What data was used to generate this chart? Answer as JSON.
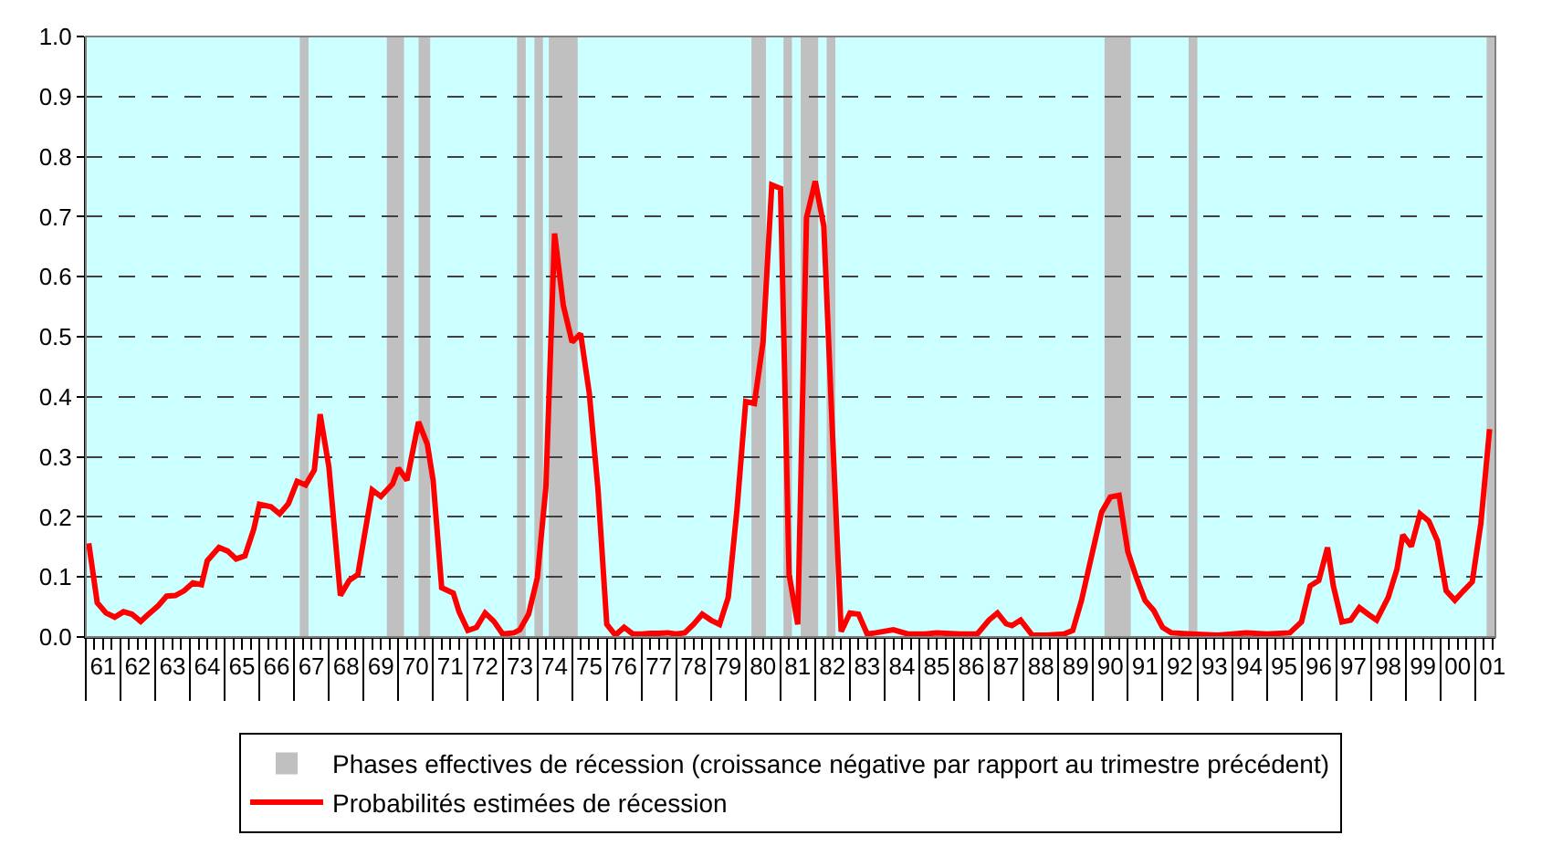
{
  "chart_data": {
    "type": "line",
    "x": [
      "1961-02",
      "1961-05",
      "1961-08",
      "1961-11",
      "1962-02",
      "1962-05",
      "1962-08",
      "1962-10",
      "1963-02",
      "1963-05",
      "1963-08",
      "1963-11",
      "1964-02",
      "1964-05",
      "1964-07",
      "1964-11",
      "1965-02",
      "1965-05",
      "1965-08",
      "1965-11",
      "1966-01",
      "1966-05",
      "1966-08",
      "1966-11",
      "1967-02",
      "1967-05",
      "1967-08",
      "1967-10",
      "1968-01",
      "1968-05",
      "1968-08",
      "1968-11",
      "1969-01",
      "1969-04",
      "1969-07",
      "1969-11",
      "1970-01",
      "1970-04",
      "1970-08",
      "1970-11",
      "1971-01",
      "1971-04",
      "1971-08",
      "1971-10",
      "1972-01",
      "1972-04",
      "1972-07",
      "1972-10",
      "1973-01",
      "1973-05",
      "1973-07",
      "1973-10",
      "1974-01",
      "1974-04",
      "1974-07",
      "1974-10",
      "1975-01",
      "1975-04",
      "1975-07",
      "1975-10",
      "1976-01",
      "1976-04",
      "1976-07",
      "1976-10",
      "1977-01",
      "1977-04",
      "1977-07",
      "1977-10",
      "1978-01",
      "1978-04",
      "1978-07",
      "1978-10",
      "1979-01",
      "1979-04",
      "1979-07",
      "1979-10",
      "1980-01",
      "1980-04",
      "1980-07",
      "1980-10",
      "1981-01",
      "1981-04",
      "1981-07",
      "1981-10",
      "1982-01",
      "1982-04",
      "1982-07",
      "1982-10",
      "1983-01",
      "1983-04",
      "1983-07",
      "1983-10",
      "1984-04",
      "1984-09",
      "1985-03",
      "1985-07",
      "1986-03",
      "1986-09",
      "1987-01",
      "1987-04",
      "1987-07",
      "1987-09",
      "1987-12",
      "1988-04",
      "1988-09",
      "1989-03",
      "1989-06",
      "1989-09",
      "1990-01",
      "1990-04",
      "1990-07",
      "1990-10",
      "1991-01",
      "1991-04",
      "1991-07",
      "1991-10",
      "1992-01",
      "1992-04",
      "1992-11",
      "1993-08",
      "1994-06",
      "1995-01",
      "1995-09",
      "1996-01",
      "1996-04",
      "1996-07",
      "1996-10",
      "1996-12",
      "1997-03",
      "1997-06",
      "1997-09",
      "1997-12",
      "1998-03",
      "1998-07",
      "1998-10",
      "1998-12",
      "1999-03",
      "1999-06",
      "1999-09",
      "1999-12",
      "2000-03",
      "2000-06",
      "2000-09",
      "2000-12",
      "2001-03",
      "2001-06"
    ],
    "series": [
      {
        "name": "Probabilités estimées de récession",
        "color": "#ff0000",
        "values": [
          0.156,
          0.057,
          0.04,
          0.033,
          0.042,
          0.038,
          0.026,
          0.035,
          0.052,
          0.068,
          0.069,
          0.077,
          0.09,
          0.087,
          0.127,
          0.149,
          0.143,
          0.13,
          0.135,
          0.179,
          0.221,
          0.217,
          0.205,
          0.222,
          0.259,
          0.253,
          0.278,
          0.371,
          0.283,
          0.069,
          0.094,
          0.104,
          0.162,
          0.245,
          0.234,
          0.255,
          0.281,
          0.261,
          0.358,
          0.321,
          0.261,
          0.082,
          0.073,
          0.042,
          0.011,
          0.016,
          0.04,
          0.026,
          0.005,
          0.007,
          0.012,
          0.038,
          0.099,
          0.25,
          0.672,
          0.552,
          0.491,
          0.505,
          0.406,
          0.245,
          0.021,
          0.003,
          0.016,
          0.005,
          0.005,
          0.006,
          0.006,
          0.007,
          0.005,
          0.007,
          0.021,
          0.038,
          0.028,
          0.021,
          0.066,
          0.212,
          0.392,
          0.389,
          0.491,
          0.753,
          0.747,
          0.104,
          0.021,
          0.698,
          0.759,
          0.684,
          0.34,
          0.009,
          0.04,
          0.038,
          0.005,
          0.007,
          0.012,
          0.005,
          0.005,
          0.007,
          0.005,
          0.005,
          0.028,
          0.04,
          0.022,
          0.019,
          0.028,
          0.003,
          0.003,
          0.005,
          0.011,
          0.061,
          0.146,
          0.208,
          0.233,
          0.236,
          0.142,
          0.099,
          0.061,
          0.044,
          0.016,
          0.007,
          0.005,
          0.003,
          0.007,
          0.005,
          0.007,
          0.025,
          0.085,
          0.094,
          0.149,
          0.085,
          0.025,
          0.028,
          0.049,
          0.038,
          0.028,
          0.066,
          0.113,
          0.17,
          0.151,
          0.205,
          0.193,
          0.16,
          0.077,
          0.061,
          0.077,
          0.092,
          0.189,
          0.346
        ]
      }
    ],
    "bands": [
      {
        "axis": "x",
        "from": "1967-03",
        "to": "1967-06",
        "color": "#c0c0c0",
        "label": "Phases effectives de récession (croissance négative par rapport au trimestre précédent)"
      },
      {
        "axis": "x",
        "from": "1969-09",
        "to": "1970-03",
        "color": "#c0c0c0"
      },
      {
        "axis": "x",
        "from": "1970-08",
        "to": "1970-12",
        "color": "#c0c0c0"
      },
      {
        "axis": "x",
        "from": "1973-06",
        "to": "1973-09",
        "color": "#c0c0c0"
      },
      {
        "axis": "x",
        "from": "1973-12",
        "to": "1974-03",
        "color": "#c0c0c0"
      },
      {
        "axis": "x",
        "from": "1974-05",
        "to": "1975-03",
        "color": "#c0c0c0"
      },
      {
        "axis": "x",
        "from": "1980-03",
        "to": "1980-08",
        "color": "#c0c0c0"
      },
      {
        "axis": "x",
        "from": "1981-02",
        "to": "1981-05",
        "color": "#c0c0c0"
      },
      {
        "axis": "x",
        "from": "1981-08",
        "to": "1982-02",
        "color": "#c0c0c0"
      },
      {
        "axis": "x",
        "from": "1982-05",
        "to": "1982-08",
        "color": "#c0c0c0"
      },
      {
        "axis": "x",
        "from": "1990-05",
        "to": "1991-02",
        "color": "#c0c0c0"
      },
      {
        "axis": "x",
        "from": "1992-10",
        "to": "1993-01",
        "color": "#c0c0c0"
      },
      {
        "axis": "x",
        "from": "2001-05",
        "to": "2001-08",
        "color": "#c0c0c0"
      }
    ],
    "xlim": [
      "1961-01",
      "2001-08"
    ],
    "xticks": [
      {
        "value": "1961-07",
        "label": "61"
      },
      {
        "value": "1962-07",
        "label": "62"
      },
      {
        "value": "1963-07",
        "label": "63"
      },
      {
        "value": "1964-07",
        "label": "64"
      },
      {
        "value": "1965-07",
        "label": "65"
      },
      {
        "value": "1966-07",
        "label": "66"
      },
      {
        "value": "1967-07",
        "label": "67"
      },
      {
        "value": "1968-07",
        "label": "68"
      },
      {
        "value": "1969-07",
        "label": "69"
      },
      {
        "value": "1970-07",
        "label": "70"
      },
      {
        "value": "1971-07",
        "label": "71"
      },
      {
        "value": "1972-07",
        "label": "72"
      },
      {
        "value": "1973-07",
        "label": "73"
      },
      {
        "value": "1974-07",
        "label": "74"
      },
      {
        "value": "1975-07",
        "label": "75"
      },
      {
        "value": "1976-07",
        "label": "76"
      },
      {
        "value": "1977-07",
        "label": "77"
      },
      {
        "value": "1978-07",
        "label": "78"
      },
      {
        "value": "1979-07",
        "label": "79"
      },
      {
        "value": "1980-07",
        "label": "80"
      },
      {
        "value": "1981-07",
        "label": "81"
      },
      {
        "value": "1982-07",
        "label": "82"
      },
      {
        "value": "1983-07",
        "label": "83"
      },
      {
        "value": "1984-07",
        "label": "84"
      },
      {
        "value": "1985-07",
        "label": "85"
      },
      {
        "value": "1986-07",
        "label": "86"
      },
      {
        "value": "1987-07",
        "label": "87"
      },
      {
        "value": "1988-07",
        "label": "88"
      },
      {
        "value": "1989-07",
        "label": "89"
      },
      {
        "value": "1990-07",
        "label": "90"
      },
      {
        "value": "1991-07",
        "label": "91"
      },
      {
        "value": "1992-07",
        "label": "92"
      },
      {
        "value": "1993-07",
        "label": "93"
      },
      {
        "value": "1994-07",
        "label": "94"
      },
      {
        "value": "1995-07",
        "label": "95"
      },
      {
        "value": "1996-07",
        "label": "96"
      },
      {
        "value": "1997-07",
        "label": "97"
      },
      {
        "value": "1998-07",
        "label": "98"
      },
      {
        "value": "1999-07",
        "label": "99"
      },
      {
        "value": "2000-07",
        "label": "00"
      },
      {
        "value": "2001-07",
        "label": "01"
      }
    ],
    "ylim": [
      0,
      1
    ],
    "yticks": [
      {
        "value": 0,
        "label": "0.0"
      },
      {
        "value": 0.1,
        "label": "0.1"
      },
      {
        "value": 0.2,
        "label": "0.2"
      },
      {
        "value": 0.3,
        "label": "0.3"
      },
      {
        "value": 0.4,
        "label": "0.4"
      },
      {
        "value": 0.5,
        "label": "0.5"
      },
      {
        "value": 0.6,
        "label": "0.6"
      },
      {
        "value": 0.7,
        "label": "0.7"
      },
      {
        "value": 0.8,
        "label": "0.8"
      },
      {
        "value": 0.9,
        "label": "0.9"
      },
      {
        "value": 1,
        "label": "1.0"
      }
    ],
    "grid": "y",
    "legend": "bottom",
    "marker": "none",
    "line_style": "solid"
  }
}
